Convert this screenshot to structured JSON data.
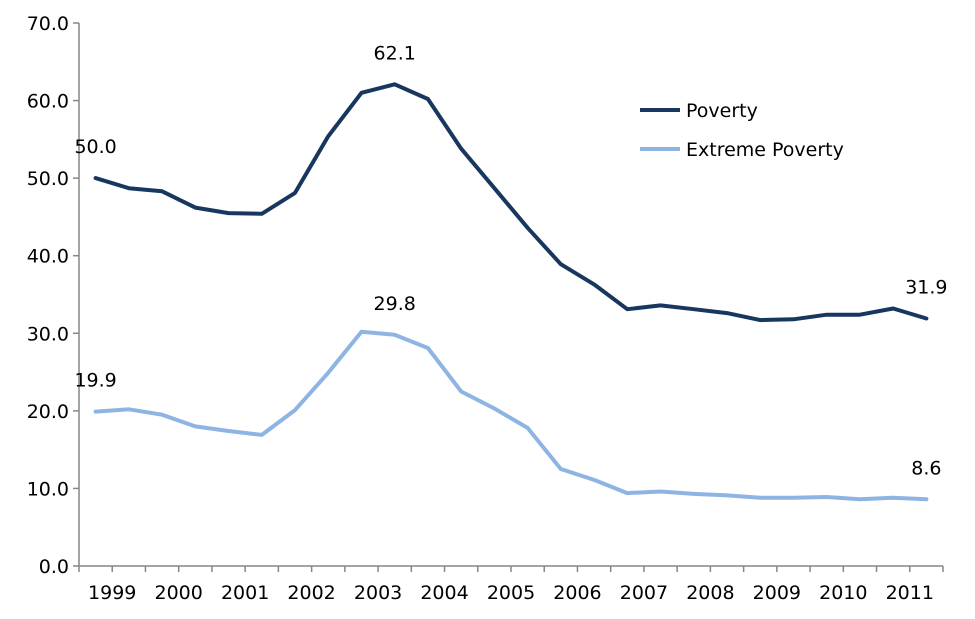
{
  "chart_data": {
    "type": "line",
    "ylim": [
      0,
      70
    ],
    "yticks": [
      "0.0",
      "10.0",
      "20.0",
      "30.0",
      "40.0",
      "50.0",
      "60.0",
      "70.0"
    ],
    "xticks": [
      "1999",
      "2000",
      "2001",
      "2002",
      "2003",
      "2004",
      "2005",
      "2006",
      "2007",
      "2008",
      "2009",
      "2010",
      "2011"
    ],
    "x": [
      "1999-H1",
      "1999-H2",
      "2000-H1",
      "2000-H2",
      "2001-H1",
      "2001-H2",
      "2002-H1",
      "2002-H2",
      "2003-H1",
      "2003-H2",
      "2004-H1",
      "2004-H2",
      "2005-H1",
      "2005-H2",
      "2006-H1",
      "2006-H2",
      "2007-H1",
      "2007-H2",
      "2008-H1",
      "2008-H2",
      "2009-H1",
      "2009-H2",
      "2010-H1",
      "2010-H2",
      "2011-H1",
      "2011-H2"
    ],
    "grid": false,
    "legend_position": "top-right",
    "series": [
      {
        "name": "Poverty",
        "color": "#17375e",
        "values": [
          50.0,
          48.7,
          48.3,
          46.2,
          45.5,
          45.4,
          48.1,
          55.4,
          61.0,
          62.1,
          60.2,
          53.8,
          48.7,
          43.6,
          38.9,
          36.3,
          33.1,
          33.6,
          33.1,
          32.6,
          31.7,
          31.8,
          32.4,
          32.4,
          33.2,
          31.9
        ],
        "labels": [
          {
            "index": 0,
            "text": "50.0"
          },
          {
            "index": 9,
            "text": "62.1"
          },
          {
            "index": 25,
            "text": "31.9"
          }
        ]
      },
      {
        "name": "Extreme Poverty",
        "color": "#8db4e2",
        "values": [
          19.9,
          20.2,
          19.5,
          18.0,
          17.4,
          16.9,
          20.1,
          24.9,
          30.2,
          29.8,
          28.1,
          22.5,
          20.3,
          17.8,
          12.5,
          11.1,
          9.4,
          9.6,
          9.3,
          9.1,
          8.8,
          8.8,
          8.9,
          8.6,
          8.8,
          8.6
        ],
        "labels": [
          {
            "index": 0,
            "text": "19.9"
          },
          {
            "index": 9,
            "text": "29.8"
          },
          {
            "index": 25,
            "text": "8.6"
          }
        ]
      }
    ]
  }
}
